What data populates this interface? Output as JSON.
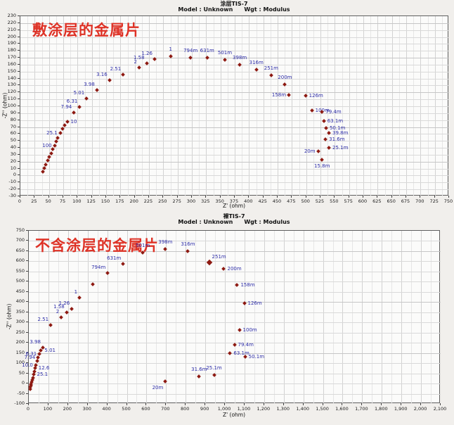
{
  "chart_data": [
    {
      "type": "scatter",
      "title": "涂层TIS-7",
      "model_label": "Model : Unknown",
      "weight_label": "Wgt : Modulus",
      "annotation": "敷涂层的金属片",
      "xlabel": "Z' (ohm)",
      "ylabel": "-Z'' (ohm)",
      "xlim": [
        0,
        750
      ],
      "xtick": 25,
      "ylim": [
        -30,
        230
      ],
      "ytick": 10,
      "grid": true,
      "legend": "none",
      "marker_color": "#8e1a12",
      "label_color": "#2d2da8",
      "annotation_color": "#de3226",
      "points": [
        [
          40,
          5,
          null,
          null
        ],
        [
          43,
          10,
          null,
          null
        ],
        [
          46,
          15,
          null,
          null
        ],
        [
          49,
          21,
          null,
          null
        ],
        [
          52,
          26,
          null,
          null
        ],
        [
          55,
          31,
          null,
          null
        ],
        [
          58,
          37,
          null,
          null
        ],
        [
          61,
          42,
          "100",
          "l"
        ],
        [
          64,
          48,
          null,
          null
        ],
        [
          67,
          53,
          null,
          null
        ],
        [
          71,
          60,
          "25.1",
          "l"
        ],
        [
          75,
          66,
          null,
          null
        ],
        [
          79,
          72,
          null,
          null
        ],
        [
          83,
          77,
          "10",
          "r"
        ],
        [
          95,
          90,
          "7.94",
          "tl"
        ],
        [
          105,
          98,
          "6.31",
          "tl"
        ],
        [
          117,
          110,
          "5.01",
          "tl"
        ],
        [
          135,
          122,
          "3.98",
          "tl"
        ],
        [
          157,
          137,
          "3.16",
          "tl"
        ],
        [
          181,
          145,
          "2.51",
          "tl"
        ],
        [
          209,
          155,
          "2",
          "tl"
        ],
        [
          222,
          161,
          "1.58",
          "tl"
        ],
        [
          236,
          167,
          "1.26",
          "tl"
        ],
        [
          264,
          171,
          "1",
          "t"
        ],
        [
          299,
          169,
          "794m",
          "t"
        ],
        [
          328,
          169,
          "631m",
          "t"
        ],
        [
          359,
          166,
          "501m",
          "t"
        ],
        [
          385,
          159,
          "398m",
          "t"
        ],
        [
          414,
          152,
          "316m",
          "t"
        ],
        [
          440,
          144,
          "251m",
          "t"
        ],
        [
          464,
          130,
          "200m",
          "t"
        ],
        [
          471,
          115,
          "158m",
          "l"
        ],
        [
          500,
          114,
          "126m",
          "r"
        ],
        [
          511,
          93,
          "100m",
          "r"
        ],
        [
          529,
          91,
          "79.4m",
          "r"
        ],
        [
          532,
          78,
          "63.1m",
          "r"
        ],
        [
          536,
          68,
          "50.1m",
          "r"
        ],
        [
          541,
          60,
          "39.8m",
          "r"
        ],
        [
          535,
          51,
          "31.6m",
          "r"
        ],
        [
          541,
          39,
          "25.1m",
          "r"
        ],
        [
          522,
          34,
          "20m",
          "l"
        ],
        [
          529,
          22,
          "15.8m",
          "b"
        ]
      ]
    },
    {
      "type": "scatter",
      "title": "裸TIS-7",
      "model_label": "Model : Unknown",
      "weight_label": "Wgt : Modulus",
      "annotation": "不含涂层的金属片",
      "xlabel": "Z' (ohm)",
      "ylabel": "-Z'' (ohm)",
      "xlim": [
        0,
        2100
      ],
      "xtick": 100,
      "ylim": [
        -100,
        750
      ],
      "ytick": 50,
      "grid": true,
      "legend": "none",
      "marker_color": "#8e1a12",
      "label_color": "#2d2da8",
      "annotation_color": "#de3226",
      "points": [
        [
          10,
          -30,
          null,
          null
        ],
        [
          12,
          -22,
          null,
          null
        ],
        [
          14,
          -14,
          null,
          null
        ],
        [
          16,
          -6,
          null,
          null
        ],
        [
          18,
          2,
          null,
          null
        ],
        [
          21,
          14,
          null,
          null
        ],
        [
          24,
          26,
          null,
          null
        ],
        [
          27,
          40,
          "25.1",
          "r"
        ],
        [
          31,
          56,
          null,
          null
        ],
        [
          35,
          72,
          "12.6",
          "r"
        ],
        [
          39,
          88,
          "10.0",
          "l"
        ],
        [
          45,
          106,
          null,
          null
        ],
        [
          51,
          124,
          "7.94",
          "l"
        ],
        [
          58,
          142,
          "6.31",
          "l"
        ],
        [
          66,
          158,
          "5.01",
          "r"
        ],
        [
          75,
          172,
          "3.98",
          "tl"
        ],
        [
          115,
          283,
          "2.51",
          "tl"
        ],
        [
          169,
          322,
          "2",
          "tl"
        ],
        [
          196,
          345,
          "1.58",
          "tl"
        ],
        [
          223,
          364,
          "1.26",
          "tl"
        ],
        [
          262,
          420,
          "1",
          "tl"
        ],
        [
          330,
          483,
          null,
          null
        ],
        [
          406,
          539,
          "794m",
          "tl"
        ],
        [
          485,
          585,
          "631m",
          "tl"
        ],
        [
          585,
          640,
          "501m",
          "t"
        ],
        [
          700,
          655,
          "398m",
          "t"
        ],
        [
          815,
          648,
          "316m",
          "t"
        ],
        [
          923,
          590,
          "251m",
          "tr",
          1
        ],
        [
          998,
          560,
          "200m",
          "r"
        ],
        [
          1066,
          480,
          "158m",
          "r"
        ],
        [
          1102,
          389,
          "126m",
          "r"
        ],
        [
          1077,
          259,
          "100m",
          "r"
        ],
        [
          1052,
          188,
          "79.4m",
          "r"
        ],
        [
          1030,
          146,
          "63.1m",
          "r"
        ],
        [
          1106,
          129,
          "50.1m",
          "r"
        ],
        [
          872,
          31,
          "31.6m",
          "t"
        ],
        [
          948,
          38,
          "25.1m",
          "t"
        ],
        [
          700,
          6,
          "20m",
          "bl"
        ]
      ]
    }
  ]
}
